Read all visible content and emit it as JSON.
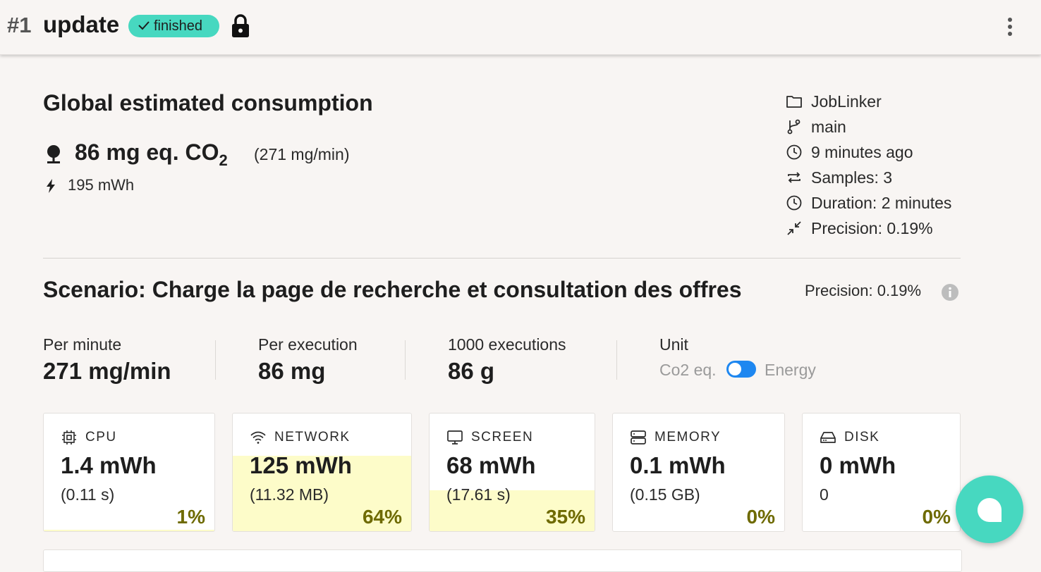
{
  "header": {
    "run_number": "#1",
    "title": "update",
    "status": "finished"
  },
  "global": {
    "heading": "Global estimated consumption",
    "co2_value": "86 mg eq. CO",
    "co2_sub": "2",
    "co2_rate": "(271 mg/min)",
    "energy": "195 mWh"
  },
  "meta": {
    "project": "JobLinker",
    "branch": "main",
    "time_ago": "9 minutes ago",
    "samples": "Samples: 3",
    "duration": "Duration: 2 minutes",
    "precision": "Precision: 0.19%"
  },
  "scenario": {
    "title": "Scenario: Charge la page de recherche et consultation des offres",
    "precision": "Precision: 0.19%"
  },
  "stats": {
    "per_minute_label": "Per minute",
    "per_minute_value": "271 mg/min",
    "per_execution_label": "Per execution",
    "per_execution_value": "86 mg",
    "thousand_label": "1000 executions",
    "thousand_value": "86 g",
    "unit_label": "Unit",
    "unit_co2": "Co2 eq.",
    "unit_energy": "Energy"
  },
  "cards": [
    {
      "label": "CPU",
      "value": "1.4 mWh",
      "sub": "(0.11 s)",
      "pct": "1%",
      "fraction": 0.01,
      "icon": "cpu-icon"
    },
    {
      "label": "NETWORK",
      "value": "125 mWh",
      "sub": "(11.32 MB)",
      "pct": "64%",
      "fraction": 0.64,
      "icon": "wifi-icon"
    },
    {
      "label": "SCREEN",
      "value": "68 mWh",
      "sub": "(17.61 s)",
      "pct": "35%",
      "fraction": 0.35,
      "icon": "monitor-icon"
    },
    {
      "label": "MEMORY",
      "value": "0.1 mWh",
      "sub": "(0.15 GB)",
      "pct": "0%",
      "fraction": 0.0,
      "icon": "memory-icon"
    },
    {
      "label": "DISK",
      "value": "0 mWh",
      "sub": "0",
      "pct": "0%",
      "fraction": 0.0,
      "icon": "disk-icon"
    }
  ],
  "colors": {
    "accent": "#47d8c0",
    "toggle": "#1e87f0",
    "fill": "#fdfcc9",
    "pct_text": "#6e6a00",
    "background": "#f8f5f3"
  }
}
